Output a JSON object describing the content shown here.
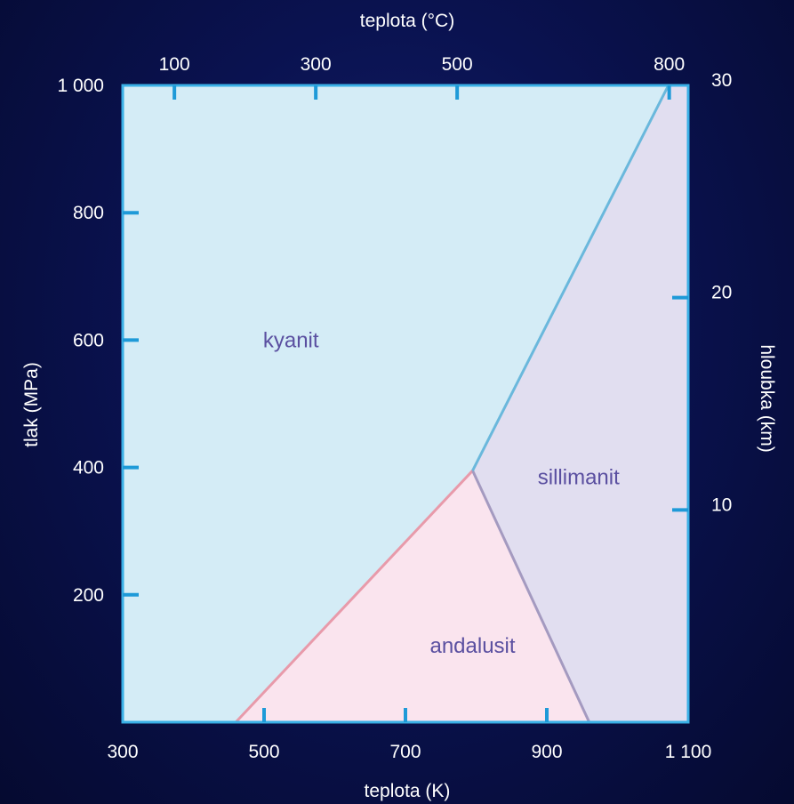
{
  "chart_data": {
    "type": "phase-diagram",
    "axes": {
      "bottom": {
        "label": "teplota (K)",
        "range": [
          300,
          1100
        ],
        "ticks": [
          300,
          500,
          700,
          900,
          1100
        ],
        "tick_labels": [
          "300",
          "500",
          "700",
          "900",
          "1 100"
        ]
      },
      "left": {
        "label": "tlak (MPa)",
        "range": [
          0,
          1000
        ],
        "ticks": [
          200,
          400,
          600,
          800,
          1000
        ],
        "tick_labels": [
          "200",
          "400",
          "600",
          "800",
          "1 000"
        ]
      },
      "top": {
        "label": "teplota (°C)",
        "ticks_kelvin": [
          373.15,
          573.15,
          773.15,
          1073.15
        ],
        "tick_labels": [
          "100",
          "300",
          "500",
          "800"
        ]
      },
      "right": {
        "label": "hloubka (km)",
        "range": [
          0,
          30
        ],
        "ticks": [
          10,
          20,
          30
        ],
        "tick_labels": [
          "10",
          "20",
          "30"
        ]
      }
    },
    "triple_point": {
      "T": 795,
      "P": 395
    },
    "boundaries": [
      {
        "name": "kyanit-andalusit",
        "points": [
          [
            460,
            0
          ],
          [
            795,
            395
          ]
        ],
        "color": "#e89aaa"
      },
      {
        "name": "andalusit-sillimanit",
        "points": [
          [
            795,
            395
          ],
          [
            960,
            0
          ]
        ],
        "color": "#a49ac0"
      },
      {
        "name": "kyanit-sillimanit",
        "points": [
          [
            795,
            395
          ],
          [
            1072,
            1000
          ]
        ],
        "color": "#6ab8dc"
      }
    ],
    "regions": [
      {
        "label": "kyanit",
        "color": "#d4ecf6",
        "label_T": 538,
        "label_P": 600
      },
      {
        "label": "sillimanit",
        "color": "#e1def0",
        "label_T": 945,
        "label_P": 385
      },
      {
        "label": "andalusit",
        "color": "#fae4ee",
        "label_T": 795,
        "label_P": 120
      }
    ],
    "frame_color": "#3ab0e6",
    "tick_color": "#1e9ad8"
  }
}
